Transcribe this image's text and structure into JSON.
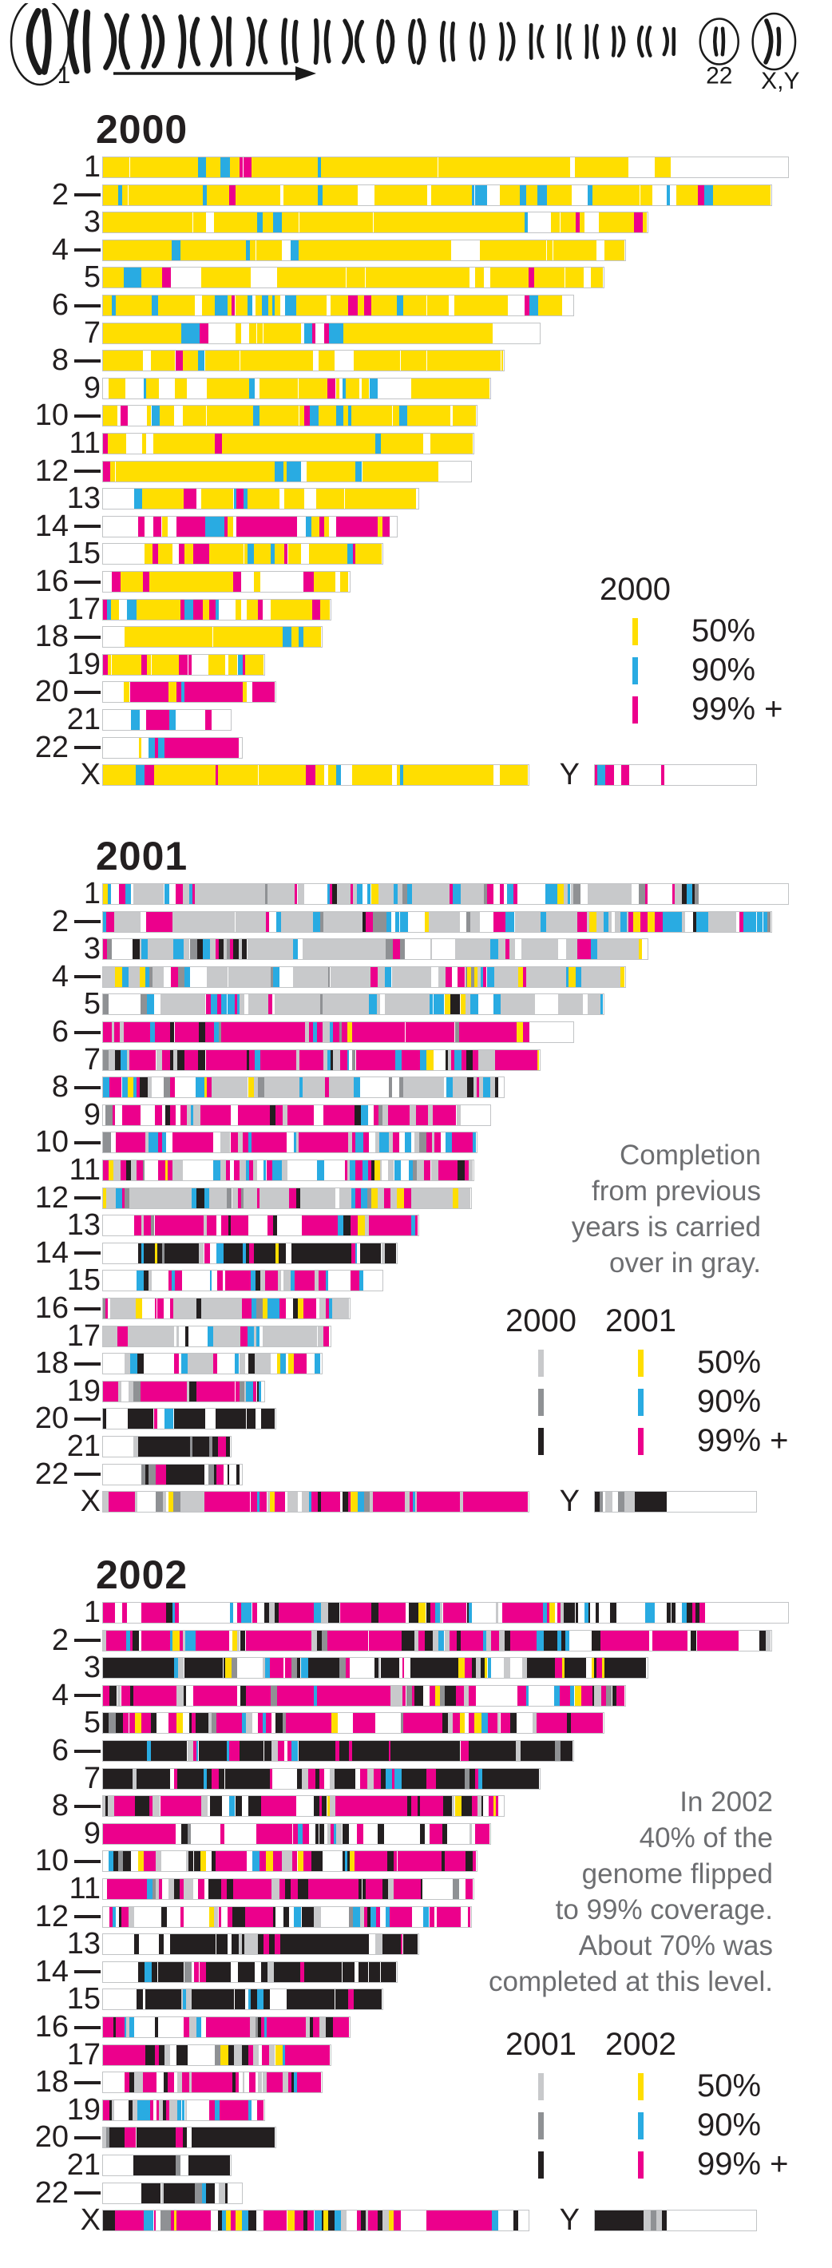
{
  "karyotype": {
    "label_first": "1",
    "label_22": "22",
    "label_xy": "X,Y"
  },
  "chart_data": {
    "type": "bar",
    "description_of_encoding": "Horizontal striped bars per human chromosome (1-22, X, Y); bar length proportional to chromosome size in Mb; stripe colors encode sequencing coverage level reached that year; gray/black stripes are coverage carried over from previous years; white is not yet covered.",
    "colors": {
      "yellow": "#FFDE00",
      "blue": "#29ABE2",
      "magenta": "#EC008C",
      "gray50": "#C8C9CB",
      "gray90": "#8F9194",
      "black99": "#231F20",
      "bar_border": "#C2C4C6",
      "text_black": "#231F20",
      "text_gray": "#6D6E71"
    },
    "legend_labels": [
      "50%",
      "90%",
      "99% +"
    ],
    "legend_palettes": {
      "current": [
        "yellow",
        "blue",
        "magenta"
      ],
      "carry": [
        "gray50",
        "gray90",
        "black99"
      ]
    },
    "chromosomes": [
      {
        "label": "1",
        "mb": 249
      },
      {
        "label": "2",
        "mb": 243
      },
      {
        "label": "3",
        "mb": 198
      },
      {
        "label": "4",
        "mb": 190
      },
      {
        "label": "5",
        "mb": 182
      },
      {
        "label": "6",
        "mb": 171
      },
      {
        "label": "7",
        "mb": 159
      },
      {
        "label": "8",
        "mb": 146
      },
      {
        "label": "9",
        "mb": 141
      },
      {
        "label": "10",
        "mb": 136
      },
      {
        "label": "11",
        "mb": 135
      },
      {
        "label": "12",
        "mb": 134
      },
      {
        "label": "13",
        "mb": 115
      },
      {
        "label": "14",
        "mb": 107
      },
      {
        "label": "15",
        "mb": 102
      },
      {
        "label": "16",
        "mb": 90
      },
      {
        "label": "17",
        "mb": 83
      },
      {
        "label": "18",
        "mb": 80
      },
      {
        "label": "19",
        "mb": 59
      },
      {
        "label": "20",
        "mb": 63
      },
      {
        "label": "21",
        "mb": 47
      },
      {
        "label": "22",
        "mb": 51
      },
      {
        "label": "X",
        "mb": 155
      },
      {
        "label": "Y",
        "mb": 59
      }
    ],
    "panels": [
      {
        "year": "2000",
        "legend": {
          "columns": [
            {
              "header": "2000",
              "palette": "current"
            }
          ]
        },
        "note_lines": [],
        "bars": [
          {
            "we": 0.16,
            "mix": {
              "y": 68,
              "b": 14,
              "m": 3,
              "w": 15
            }
          },
          {
            "mix": {
              "y": 70,
              "b": 14,
              "m": 3,
              "w": 13
            }
          },
          {
            "mix": {
              "y": 76,
              "b": 10,
              "m": 3,
              "w": 11
            }
          },
          {
            "mix": {
              "y": 78,
              "b": 9,
              "m": 2,
              "w": 11
            }
          },
          {
            "mix": {
              "y": 74,
              "b": 12,
              "m": 2,
              "w": 12
            }
          },
          {
            "mix": {
              "y": 62,
              "b": 18,
              "m": 8,
              "w": 12
            }
          },
          {
            "mix": {
              "y": 52,
              "b": 20,
              "m": 16,
              "w": 12
            }
          },
          {
            "mix": {
              "y": 64,
              "b": 16,
              "m": 8,
              "w": 12
            }
          },
          {
            "mix": {
              "y": 56,
              "b": 14,
              "m": 4,
              "w": 26
            }
          },
          {
            "mix": {
              "y": 60,
              "b": 20,
              "m": 6,
              "w": 14
            }
          },
          {
            "mix": {
              "y": 64,
              "b": 16,
              "m": 6,
              "w": 14
            }
          },
          {
            "mix": {
              "y": 66,
              "b": 16,
              "m": 4,
              "w": 14
            }
          },
          {
            "ws": 0.1,
            "mix": {
              "y": 52,
              "b": 16,
              "m": 14,
              "w": 18
            }
          },
          {
            "ws": 0.12,
            "mix": {
              "y": 26,
              "b": 14,
              "m": 45,
              "w": 15
            }
          },
          {
            "ws": 0.12,
            "mix": {
              "y": 58,
              "b": 14,
              "m": 10,
              "w": 18
            }
          },
          {
            "mix": {
              "y": 56,
              "b": 16,
              "m": 12,
              "w": 16
            }
          },
          {
            "mix": {
              "y": 42,
              "b": 20,
              "m": 22,
              "w": 16
            }
          },
          {
            "ws": 0.1,
            "mix": {
              "y": 56,
              "b": 16,
              "m": 8,
              "w": 20
            }
          },
          {
            "mix": {
              "y": 42,
              "b": 24,
              "m": 16,
              "w": 18
            }
          },
          {
            "ws": 0.12,
            "mix": {
              "y": 20,
              "b": 16,
              "m": 44,
              "w": 20
            }
          },
          {
            "ws": 0.22,
            "mix": {
              "y": 12,
              "b": 16,
              "m": 52,
              "w": 20
            }
          },
          {
            "ws": 0.26,
            "mix": {
              "y": 16,
              "b": 20,
              "m": 40,
              "w": 24
            }
          },
          {
            "mix": {
              "y": 62,
              "b": 12,
              "m": 4,
              "w": 22
            }
          },
          {
            "we": 0.52,
            "mix": {
              "m": 30,
              "b": 20,
              "y": 15,
              "w": 35
            }
          }
        ]
      },
      {
        "year": "2001",
        "legend": {
          "columns": [
            {
              "header": "2000",
              "palette": "carry"
            },
            {
              "header": "2001",
              "palette": "current"
            }
          ]
        },
        "note_lines": [
          "Completion",
          "from previous",
          "years is carried",
          "over in gray."
        ],
        "bars": [
          {
            "we": 0.13,
            "mix": {
              "g": 32,
              "d": 8,
              "k": 5,
              "m": 20,
              "b": 16,
              "y": 5,
              "w": 14
            }
          },
          {
            "mix": {
              "g": 28,
              "d": 6,
              "k": 6,
              "m": 24,
              "b": 18,
              "y": 4,
              "w": 14
            }
          },
          {
            "mix": {
              "g": 36,
              "d": 8,
              "k": 5,
              "m": 18,
              "b": 14,
              "y": 6,
              "w": 13
            }
          },
          {
            "mix": {
              "g": 48,
              "d": 8,
              "k": 3,
              "m": 8,
              "b": 12,
              "y": 6,
              "w": 15
            }
          },
          {
            "mix": {
              "g": 40,
              "d": 6,
              "k": 4,
              "m": 12,
              "b": 18,
              "y": 8,
              "w": 12
            }
          },
          {
            "mix": {
              "g": 12,
              "d": 4,
              "k": 8,
              "m": 52,
              "b": 10,
              "y": 3,
              "w": 11
            }
          },
          {
            "mix": {
              "g": 18,
              "d": 6,
              "k": 14,
              "m": 30,
              "b": 16,
              "y": 5,
              "w": 11
            }
          },
          {
            "mix": {
              "g": 30,
              "d": 8,
              "k": 6,
              "m": 22,
              "b": 16,
              "y": 5,
              "w": 13
            }
          },
          {
            "mix": {
              "g": 16,
              "d": 4,
              "k": 6,
              "m": 34,
              "b": 12,
              "y": 3,
              "w": 25
            }
          },
          {
            "mix": {
              "g": 20,
              "d": 5,
              "k": 3,
              "m": 30,
              "b": 22,
              "y": 4,
              "w": 16
            }
          },
          {
            "mix": {
              "g": 26,
              "d": 5,
              "k": 6,
              "m": 30,
              "b": 12,
              "y": 5,
              "w": 16
            }
          },
          {
            "mix": {
              "g": 30,
              "d": 5,
              "k": 6,
              "m": 22,
              "b": 14,
              "y": 7,
              "w": 16
            }
          },
          {
            "ws": 0.1,
            "mix": {
              "g": 14,
              "d": 4,
              "k": 12,
              "m": 46,
              "b": 8,
              "y": 3,
              "w": 13
            }
          },
          {
            "ws": 0.12,
            "mix": {
              "g": 12,
              "d": 3,
              "k": 50,
              "m": 16,
              "b": 5,
              "y": 3,
              "w": 11
            }
          },
          {
            "ws": 0.12,
            "mix": {
              "g": 14,
              "d": 4,
              "k": 16,
              "m": 36,
              "b": 14,
              "y": 4,
              "w": 12
            }
          },
          {
            "mix": {
              "g": 28,
              "d": 5,
              "k": 10,
              "m": 20,
              "b": 15,
              "y": 5,
              "w": 17
            }
          },
          {
            "mix": {
              "g": 32,
              "d": 8,
              "k": 10,
              "m": 20,
              "b": 11,
              "y": 4,
              "w": 15
            }
          },
          {
            "ws": 0.1,
            "mix": {
              "g": 26,
              "d": 8,
              "k": 5,
              "m": 20,
              "b": 15,
              "y": 6,
              "w": 20
            }
          },
          {
            "mix": {
              "g": 24,
              "d": 5,
              "k": 6,
              "m": 26,
              "b": 20,
              "y": 5,
              "w": 14
            }
          },
          {
            "mix": {
              "k": 58,
              "m": 13,
              "g": 10,
              "d": 4,
              "b": 3,
              "y": 1,
              "w": 11
            }
          },
          {
            "ws": 0.24,
            "mix": {
              "k": 56,
              "g": 14,
              "d": 5,
              "m": 4,
              "b": 2,
              "w": 19
            }
          },
          {
            "ws": 0.28,
            "mix": {
              "g": 18,
              "d": 8,
              "k": 36,
              "m": 10,
              "b": 4,
              "w": 24
            }
          },
          {
            "mix": {
              "g": 28,
              "d": 4,
              "k": 5,
              "m": 32,
              "b": 10,
              "y": 5,
              "w": 16
            }
          },
          {
            "we": 0.55,
            "mix": {
              "k": 35,
              "g": 30,
              "d": 10,
              "b": 5,
              "w": 20
            }
          }
        ]
      },
      {
        "year": "2002",
        "legend": {
          "columns": [
            {
              "header": "2001",
              "palette": "carry"
            },
            {
              "header": "2002",
              "palette": "current"
            }
          ]
        },
        "note_lines": [
          "In 2002",
          "40% of the",
          "genome flipped",
          "to 99% coverage.",
          "About 70% was",
          "completed at this level."
        ],
        "bars": [
          {
            "we": 0.12,
            "mix": {
              "m": 34,
              "k": 26,
              "g": 9,
              "d": 3,
              "b": 8,
              "y": 3,
              "w": 17
            }
          },
          {
            "mix": {
              "m": 38,
              "k": 26,
              "b": 9,
              "g": 9,
              "d": 3,
              "y": 3,
              "w": 12
            }
          },
          {
            "mix": {
              "k": 30,
              "m": 30,
              "g": 9,
              "d": 3,
              "b": 10,
              "y": 4,
              "w": 14
            }
          },
          {
            "mix": {
              "m": 42,
              "k": 16,
              "b": 10,
              "g": 10,
              "d": 3,
              "y": 4,
              "w": 15
            }
          },
          {
            "mix": {
              "m": 48,
              "k": 15,
              "b": 8,
              "g": 9,
              "d": 2,
              "y": 2,
              "w": 16
            }
          },
          {
            "mix": {
              "k": 58,
              "m": 20,
              "g": 5,
              "d": 2,
              "b": 3,
              "y": 1,
              "w": 11
            }
          },
          {
            "mix": {
              "k": 44,
              "m": 24,
              "b": 8,
              "g": 7,
              "d": 2,
              "y": 1,
              "w": 14
            }
          },
          {
            "mix": {
              "m": 42,
              "k": 20,
              "b": 8,
              "g": 10,
              "d": 2,
              "y": 2,
              "w": 16
            }
          },
          {
            "mix": {
              "m": 28,
              "k": 24,
              "b": 5,
              "g": 8,
              "d": 2,
              "y": 2,
              "w": 31
            }
          },
          {
            "mix": {
              "m": 38,
              "k": 20,
              "b": 8,
              "g": 10,
              "d": 2,
              "y": 2,
              "w": 20
            }
          },
          {
            "mix": {
              "m": 42,
              "k": 26,
              "b": 5,
              "g": 8,
              "d": 2,
              "y": 2,
              "w": 15
            }
          },
          {
            "mix": {
              "m": 33,
              "k": 20,
              "b": 10,
              "g": 10,
              "d": 2,
              "y": 2,
              "w": 23
            }
          },
          {
            "ws": 0.1,
            "mix": {
              "k": 52,
              "m": 12,
              "g": 10,
              "d": 3,
              "b": 5,
              "w": 18
            }
          },
          {
            "ws": 0.12,
            "mix": {
              "k": 66,
              "m": 6,
              "g": 8,
              "d": 2,
              "b": 2,
              "w": 16
            }
          },
          {
            "ws": 0.12,
            "mix": {
              "k": 42,
              "m": 26,
              "g": 10,
              "d": 2,
              "b": 5,
              "w": 15
            }
          },
          {
            "mix": {
              "m": 28,
              "k": 20,
              "b": 14,
              "y": 8,
              "g": 11,
              "d": 2,
              "w": 17
            }
          },
          {
            "mix": {
              "k": 28,
              "m": 30,
              "b": 10,
              "g": 14,
              "d": 2,
              "y": 2,
              "w": 14
            }
          },
          {
            "ws": 0.1,
            "mix": {
              "m": 33,
              "k": 16,
              "b": 10,
              "g": 14,
              "d": 3,
              "y": 5,
              "w": 19
            }
          },
          {
            "mix": {
              "m": 28,
              "k": 20,
              "b": 14,
              "g": 14,
              "d": 2,
              "y": 2,
              "w": 20
            }
          },
          {
            "mix": {
              "k": 60,
              "m": 9,
              "g": 12,
              "d": 3,
              "b": 2,
              "w": 14
            }
          },
          {
            "ws": 0.24,
            "mix": {
              "k": 56,
              "m": 5,
              "g": 14,
              "d": 3,
              "w": 22
            }
          },
          {
            "ws": 0.28,
            "mix": {
              "g": 18,
              "d": 8,
              "k": 40,
              "m": 5,
              "b": 2,
              "w": 27
            }
          },
          {
            "mix": {
              "m": 33,
              "k": 20,
              "b": 10,
              "y": 8,
              "g": 11,
              "d": 3,
              "w": 15
            }
          },
          {
            "we": 0.55,
            "mix": {
              "k": 40,
              "g": 25,
              "d": 10,
              "w": 25
            }
          }
        ]
      }
    ]
  }
}
